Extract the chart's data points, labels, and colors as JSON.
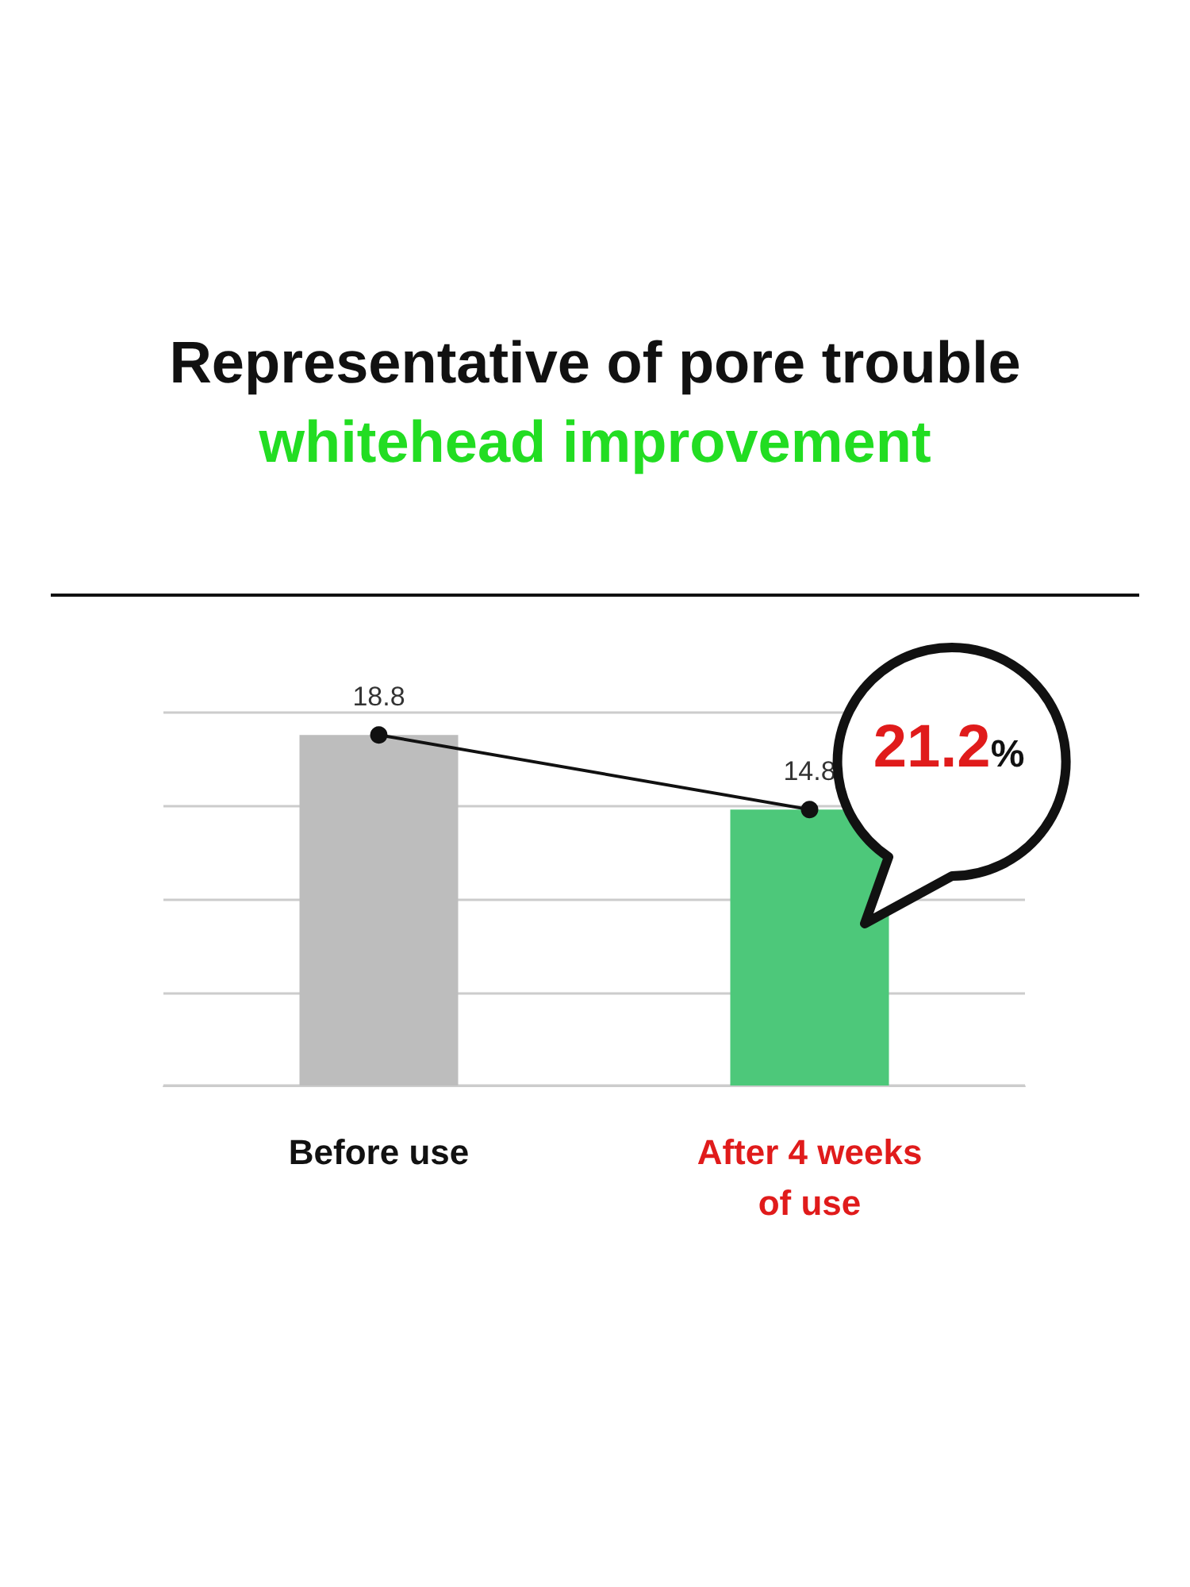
{
  "chart_data": {
    "type": "bar",
    "title": "Representative of pore trouble",
    "subtitle": "whitehead improvement",
    "categories": [
      "Before use",
      "After 4 weeks\nof use"
    ],
    "series": [
      {
        "values": [
          18.8,
          14.8
        ],
        "colors": [
          "#bdbdbd",
          "#4dc87a"
        ]
      },
      {
        "type": "line",
        "color": "#111111",
        "values": [
          18.8,
          14.8
        ],
        "value_labels": [
          "18.8",
          "14.8"
        ]
      }
    ],
    "marker": "circle",
    "grid": "y",
    "tick_labels": "x",
    "annotations": [
      "21.2%"
    ]
  }
}
